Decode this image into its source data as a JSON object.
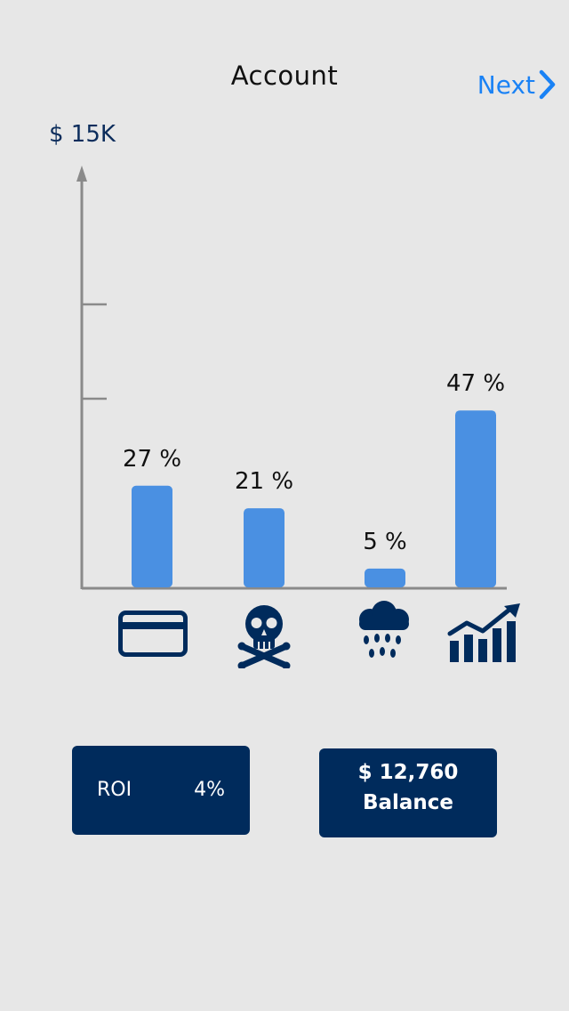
{
  "nav": {
    "title": "Account",
    "next_label": "Next"
  },
  "colors": {
    "bar": "#4a90e2",
    "navy": "#002b5c",
    "axis": "#8a8a8a",
    "accent": "#1a82f5"
  },
  "chart_data": {
    "type": "bar",
    "y_max_label": "$ 15K",
    "categories": [
      "credit-card",
      "skull-crossbones",
      "rain-cloud",
      "growth-chart"
    ],
    "values": [
      27,
      21,
      5,
      47
    ],
    "value_labels": [
      "27 %",
      "21 %",
      "5 %",
      "47 %"
    ],
    "icons": [
      "credit-card-icon",
      "skull-crossbones-icon",
      "rain-cloud-icon",
      "growth-chart-icon"
    ]
  },
  "roi": {
    "label": "ROI",
    "value": "4%"
  },
  "balance": {
    "amount": "$ 12,760",
    "caption": "Balance"
  }
}
